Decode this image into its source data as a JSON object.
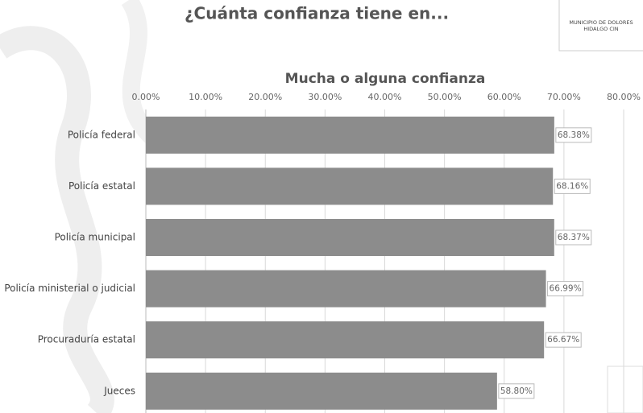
{
  "header": {
    "title": "¿Cuánta confianza tiene en...",
    "logo_lines": [
      "MUNICIPIO DE DOLORES",
      "HIDALGO CIN"
    ]
  },
  "chart_data": {
    "type": "bar",
    "orientation": "horizontal",
    "title": "Mucha o alguna confianza",
    "categories": [
      "Policía federal",
      "Policía estatal",
      "Policía municipal",
      "Policía ministerial o judicial",
      "Procuraduría estatal",
      "Jueces"
    ],
    "values": [
      68.38,
      68.16,
      68.37,
      66.99,
      66.67,
      58.8
    ],
    "value_labels": [
      "68.38%",
      "68.16%",
      "68.37%",
      "66.99%",
      "66.67%",
      "58.80%"
    ],
    "color": "#8c8c8c",
    "xlim": [
      0,
      80
    ],
    "xticks": [
      {
        "value": 0,
        "label": "0.00%"
      },
      {
        "value": 10,
        "label": "10.00%"
      },
      {
        "value": 20,
        "label": "20.00%"
      },
      {
        "value": 30,
        "label": "30.00%"
      },
      {
        "value": 40,
        "label": "40.00%"
      },
      {
        "value": 50,
        "label": "50.00%"
      },
      {
        "value": 60,
        "label": "60.00%"
      },
      {
        "value": 70,
        "label": "70.00%"
      },
      {
        "value": 80,
        "label": "80.00%"
      }
    ],
    "grid": true
  }
}
